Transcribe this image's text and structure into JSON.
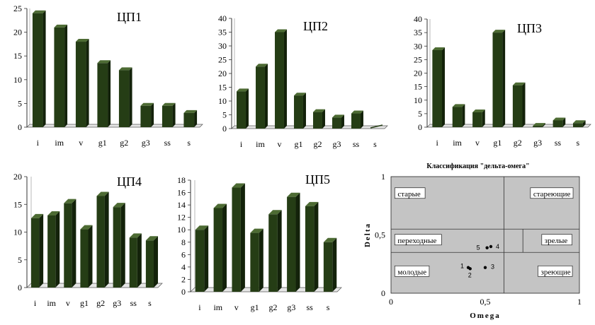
{
  "colors": {
    "bar": "#253d15",
    "bar_side": "#13220a",
    "bar_top": "#4d6b33",
    "plot_area": "#c4c4c4"
  },
  "chart_data": [
    {
      "type": "bar",
      "title": "ЦП1",
      "categories": [
        "i",
        "im",
        "v",
        "g1",
        "g2",
        "g3",
        "ss",
        "s"
      ],
      "values": [
        24,
        21,
        18,
        13.5,
        12,
        4.5,
        4.5,
        3
      ],
      "yticks": [
        "0",
        "5",
        "10",
        "15",
        "20",
        "25"
      ],
      "ylim": [
        0,
        25
      ],
      "grid": false
    },
    {
      "type": "bar",
      "title": "ЦП2",
      "categories": [
        "i",
        "im",
        "v",
        "g1",
        "g2",
        "g3",
        "ss",
        "s"
      ],
      "values": [
        13.5,
        22.5,
        35,
        12,
        6,
        4,
        5.5,
        0
      ],
      "yticks": [
        "0",
        "5",
        "10",
        "15",
        "20",
        "25",
        "30",
        "35",
        "40"
      ],
      "ylim": [
        0,
        40
      ],
      "grid": false
    },
    {
      "type": "bar",
      "title": "ЦП3",
      "categories": [
        "i",
        "im",
        "v",
        "g1",
        "g2",
        "g3",
        "ss",
        "s"
      ],
      "values": [
        28.5,
        7.5,
        5.5,
        35,
        15.5,
        0.5,
        2.5,
        1.5
      ],
      "yticks": [
        "0",
        "5",
        "10",
        "15",
        "20",
        "25",
        "30",
        "35",
        "40"
      ],
      "ylim": [
        0,
        40
      ],
      "grid": false
    },
    {
      "type": "bar",
      "title": "ЦП4",
      "categories": [
        "i",
        "im",
        "v",
        "g1",
        "g2",
        "g3",
        "ss",
        "s"
      ],
      "values": [
        12.5,
        13,
        15.2,
        10.5,
        16.5,
        14.5,
        9,
        8.5
      ],
      "yticks": [
        "0",
        "5",
        "10",
        "15",
        "20"
      ],
      "ylim": [
        0,
        20
      ],
      "grid": false
    },
    {
      "type": "bar",
      "title": "ЦП5",
      "categories": [
        "i",
        "im",
        "v",
        "g1",
        "g2",
        "g3",
        "ss",
        "s"
      ],
      "values": [
        10,
        13.5,
        16.8,
        9.5,
        12.5,
        15.3,
        13.8,
        8
      ],
      "yticks": [
        "0",
        "2",
        "4",
        "6",
        "8",
        "10",
        "12",
        "14",
        "16",
        "18"
      ],
      "ylim": [
        0,
        18
      ],
      "grid": false
    },
    {
      "type": "scatter",
      "title": "Классификация \"дельта-омега\"",
      "xlabel": "Omega",
      "ylabel": "Delta",
      "xlim": [
        0,
        1
      ],
      "ylim": [
        0,
        1
      ],
      "xticks": [
        "0",
        "0,5",
        "1"
      ],
      "yticks": [
        "0",
        "0,5",
        "1"
      ],
      "dividers": {
        "x_low": 0.6,
        "x_high": 0.7,
        "y_low": 0.35,
        "y_high": 0.55
      },
      "zones": [
        {
          "label": "старые",
          "x": 0.02,
          "y": 0.85
        },
        {
          "label": "стареющие",
          "x": 0.74,
          "y": 0.85
        },
        {
          "label": "переходные",
          "x": 0.02,
          "y": 0.45
        },
        {
          "label": "зрелые",
          "x": 0.8,
          "y": 0.45
        },
        {
          "label": "молодые",
          "x": 0.02,
          "y": 0.18
        },
        {
          "label": "зреющие",
          "x": 0.78,
          "y": 0.18
        }
      ],
      "points": [
        {
          "label": "1",
          "x": 0.41,
          "y": 0.22
        },
        {
          "label": "2",
          "x": 0.42,
          "y": 0.21
        },
        {
          "label": "3",
          "x": 0.5,
          "y": 0.22
        },
        {
          "label": "4",
          "x": 0.53,
          "y": 0.4
        },
        {
          "label": "5",
          "x": 0.51,
          "y": 0.39
        }
      ]
    }
  ]
}
